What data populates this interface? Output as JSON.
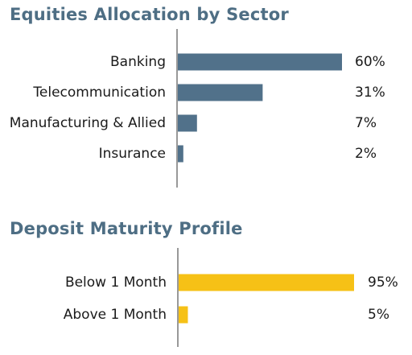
{
  "chart_data": [
    {
      "type": "bar",
      "orientation": "horizontal",
      "title": "Equities Allocation by Sector",
      "categories": [
        "Banking",
        "Telecommunication",
        "Manufacturing & Allied",
        "Insurance"
      ],
      "values": [
        60,
        31,
        7,
        2
      ],
      "value_labels": [
        "60%",
        "31%",
        "7%",
        "2%"
      ],
      "unit": "%",
      "xlim": [
        0,
        60
      ],
      "grid": false,
      "color": "#51718a"
    },
    {
      "type": "bar",
      "orientation": "horizontal",
      "title": "Deposit Maturity Profile",
      "categories": [
        "Below 1 Month",
        "Above 1 Month"
      ],
      "values": [
        95,
        5
      ],
      "value_labels": [
        "95%",
        "5%"
      ],
      "unit": "%",
      "xlim": [
        0,
        95
      ],
      "grid": false,
      "color": "#f6c116"
    }
  ]
}
